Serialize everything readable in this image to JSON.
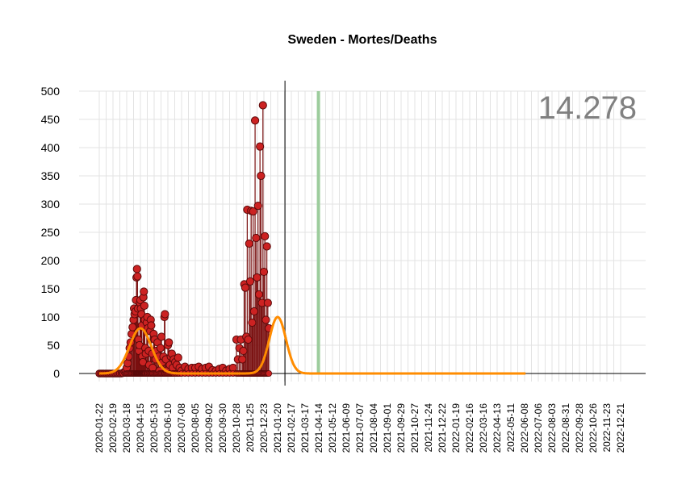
{
  "chart_data": {
    "type": "line",
    "title": "Sweden - Mortes/Deaths",
    "total_label": "14.278",
    "ylim": [
      0,
      500
    ],
    "y_ticks": [
      0,
      50,
      100,
      150,
      200,
      250,
      300,
      350,
      400,
      450,
      500
    ],
    "x_tick_labels": [
      "2020-01-22",
      "2020-02-19",
      "2020-03-18",
      "2020-04-15",
      "2020-05-13",
      "2020-06-10",
      "2020-07-08",
      "2020-08-05",
      "2020-09-02",
      "2020-09-30",
      "2020-10-28",
      "2020-11-25",
      "2020-12-23",
      "2021-01-20",
      "2021-02-17",
      "2021-03-17",
      "2021-04-14",
      "2021-05-12",
      "2021-06-09",
      "2021-07-07",
      "2021-08-04",
      "2021-09-01",
      "2021-09-29",
      "2021-10-27",
      "2021-11-24",
      "2021-12-22",
      "2022-01-19",
      "2022-02-16",
      "2022-03-16",
      "2022-04-13",
      "2022-05-11",
      "2022-06-08",
      "2022-07-06",
      "2022-08-03",
      "2022-08-31",
      "2022-09-28",
      "2022-10-26",
      "2022-11-23",
      "2022-12-21"
    ],
    "first_date": "2020-01-22",
    "last_observed_date": "2021-02-04",
    "current_date_marker": "2021-02-04",
    "highlight_window": [
      "2021-04-10",
      "2021-04-16"
    ],
    "fitted_curve_end": "2022-06-10",
    "grid": true,
    "colors": {
      "points": "#cc2222",
      "point_edge": "#5a0a0a",
      "stems": "#7a1010",
      "fit": "#ff8c00",
      "band": "#aaaaaa",
      "highlight": "#9ccc9c",
      "grid": "#e3e3e3",
      "total_text": "#808080"
    },
    "series": [
      {
        "name": "Deaths",
        "points": [
          [
            "2020-03-10",
            1
          ],
          [
            "2020-03-14",
            3
          ],
          [
            "2020-03-16",
            5
          ],
          [
            "2020-03-18",
            10
          ],
          [
            "2020-03-20",
            18
          ],
          [
            "2020-03-22",
            30
          ],
          [
            "2020-03-24",
            45
          ],
          [
            "2020-03-26",
            55
          ],
          [
            "2020-03-28",
            70
          ],
          [
            "2020-03-30",
            82
          ],
          [
            "2020-04-01",
            95
          ],
          [
            "2020-04-02",
            115
          ],
          [
            "2020-04-03",
            105
          ],
          [
            "2020-04-05",
            110
          ],
          [
            "2020-04-06",
            130
          ],
          [
            "2020-04-07",
            170
          ],
          [
            "2020-04-08",
            185
          ],
          [
            "2020-04-09",
            172
          ],
          [
            "2020-04-10",
            115
          ],
          [
            "2020-04-11",
            60
          ],
          [
            "2020-04-12",
            40
          ],
          [
            "2020-04-13",
            50
          ],
          [
            "2020-04-14",
            125
          ],
          [
            "2020-04-15",
            130
          ],
          [
            "2020-04-16",
            115
          ],
          [
            "2020-04-17",
            105
          ],
          [
            "2020-04-18",
            85
          ],
          [
            "2020-04-19",
            30
          ],
          [
            "2020-04-20",
            20
          ],
          [
            "2020-04-21",
            135
          ],
          [
            "2020-04-22",
            145
          ],
          [
            "2020-04-23",
            120
          ],
          [
            "2020-04-24",
            95
          ],
          [
            "2020-04-25",
            45
          ],
          [
            "2020-04-26",
            35
          ],
          [
            "2020-04-28",
            90
          ],
          [
            "2020-04-29",
            100
          ],
          [
            "2020-04-30",
            80
          ],
          [
            "2020-05-02",
            40
          ],
          [
            "2020-05-03",
            15
          ],
          [
            "2020-05-05",
            75
          ],
          [
            "2020-05-06",
            95
          ],
          [
            "2020-05-07",
            85
          ],
          [
            "2020-05-09",
            35
          ],
          [
            "2020-05-10",
            10
          ],
          [
            "2020-05-12",
            70
          ],
          [
            "2020-05-14",
            60
          ],
          [
            "2020-05-16",
            25
          ],
          [
            "2020-05-18",
            40
          ],
          [
            "2020-05-20",
            55
          ],
          [
            "2020-05-22",
            30
          ],
          [
            "2020-05-24",
            5
          ],
          [
            "2020-05-26",
            45
          ],
          [
            "2020-05-28",
            65
          ],
          [
            "2020-05-30",
            20
          ],
          [
            "2020-06-01",
            30
          ],
          [
            "2020-06-03",
            100
          ],
          [
            "2020-06-04",
            105
          ],
          [
            "2020-06-06",
            25
          ],
          [
            "2020-06-08",
            5
          ],
          [
            "2020-06-10",
            50
          ],
          [
            "2020-06-12",
            55
          ],
          [
            "2020-06-14",
            15
          ],
          [
            "2020-06-16",
            30
          ],
          [
            "2020-06-18",
            35
          ],
          [
            "2020-06-20",
            10
          ],
          [
            "2020-06-22",
            25
          ],
          [
            "2020-06-25",
            20
          ],
          [
            "2020-06-28",
            15
          ],
          [
            "2020-07-01",
            28
          ],
          [
            "2020-07-04",
            10
          ],
          [
            "2020-07-08",
            5
          ],
          [
            "2020-07-15",
            12
          ],
          [
            "2020-07-22",
            8
          ],
          [
            "2020-07-29",
            10
          ],
          [
            "2020-08-05",
            10
          ],
          [
            "2020-08-12",
            12
          ],
          [
            "2020-08-19",
            8
          ],
          [
            "2020-08-26",
            10
          ],
          [
            "2020-09-02",
            12
          ],
          [
            "2020-09-09",
            6
          ],
          [
            "2020-09-16",
            5
          ],
          [
            "2020-09-23",
            8
          ],
          [
            "2020-09-30",
            10
          ],
          [
            "2020-10-07",
            5
          ],
          [
            "2020-10-14",
            8
          ],
          [
            "2020-10-21",
            10
          ],
          [
            "2020-10-28",
            60
          ],
          [
            "2020-10-31",
            25
          ],
          [
            "2020-11-03",
            45
          ],
          [
            "2020-11-06",
            60
          ],
          [
            "2020-11-09",
            25
          ],
          [
            "2020-11-11",
            40
          ],
          [
            "2020-11-13",
            158
          ],
          [
            "2020-11-15",
            152
          ],
          [
            "2020-11-17",
            65
          ],
          [
            "2020-11-19",
            290
          ],
          [
            "2020-11-21",
            60
          ],
          [
            "2020-11-23",
            230
          ],
          [
            "2020-11-25",
            163
          ],
          [
            "2020-11-27",
            288
          ],
          [
            "2020-11-29",
            90
          ],
          [
            "2020-12-01",
            287
          ],
          [
            "2020-12-03",
            110
          ],
          [
            "2020-12-05",
            448
          ],
          [
            "2020-12-07",
            240
          ],
          [
            "2020-12-09",
            170
          ],
          [
            "2020-12-11",
            297
          ],
          [
            "2020-12-13",
            140
          ],
          [
            "2020-12-15",
            402
          ],
          [
            "2020-12-17",
            350
          ],
          [
            "2020-12-19",
            125
          ],
          [
            "2020-12-21",
            475
          ],
          [
            "2020-12-23",
            180
          ],
          [
            "2020-12-25",
            243
          ],
          [
            "2020-12-27",
            95
          ],
          [
            "2020-12-29",
            225
          ],
          [
            "2020-12-31",
            125
          ],
          [
            "2021-01-02",
            80
          ]
        ]
      },
      {
        "name": "Fit",
        "peaks": [
          {
            "date": "2020-04-15",
            "value": 80,
            "sigma_days": 22
          },
          {
            "date": "2021-01-20",
            "value": 100,
            "sigma_days": 17
          }
        ]
      }
    ]
  }
}
